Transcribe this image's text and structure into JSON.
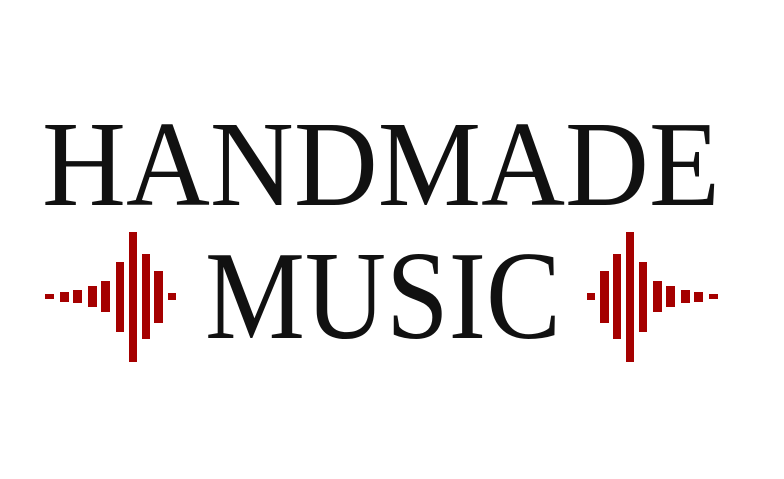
{
  "logo": {
    "line1": "HANDMADE",
    "line2": "MUSIC",
    "text_color": "#111111",
    "accent_color": "#a50000",
    "icon_left": "sound-wave-icon",
    "icon_right": "sound-wave-icon"
  }
}
